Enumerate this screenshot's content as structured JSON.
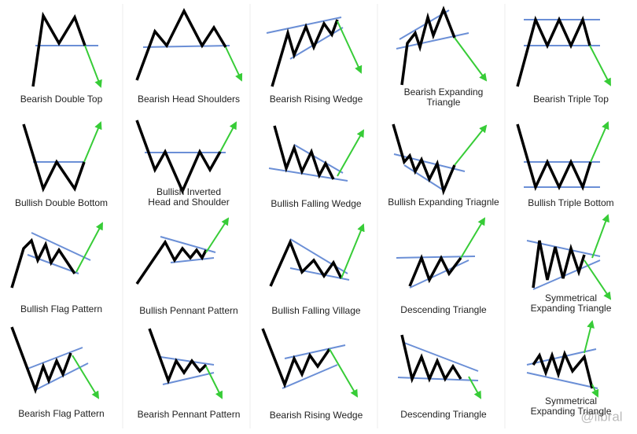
{
  "patterns": [
    {
      "lines": [
        "Bearish Double Top"
      ]
    },
    {
      "lines": [
        "Bearish Head Shoulders"
      ]
    },
    {
      "lines": [
        "Bearish Rising Wedge"
      ]
    },
    {
      "lines": [
        "Bearish Expanding",
        "Triangle"
      ]
    },
    {
      "lines": [
        "Bearish Triple Top"
      ]
    },
    {
      "lines": [
        "Bullish Double Bottom"
      ]
    },
    {
      "lines": [
        "Bullish Inverted",
        "Head and Shoulder"
      ]
    },
    {
      "lines": [
        "Bullish Falling Wedge"
      ]
    },
    {
      "lines": [
        "Bullish Expanding Triagnle"
      ]
    },
    {
      "lines": [
        "Bullish Triple Bottom"
      ]
    },
    {
      "lines": [
        "Bullish Flag Pattern"
      ]
    },
    {
      "lines": [
        "Bullish Pennant Pattern"
      ]
    },
    {
      "lines": [
        "Bullish Falling Village"
      ]
    },
    {
      "lines": [
        "Descending Triangle"
      ]
    },
    {
      "lines": [
        "Symmetrical",
        "Expanding Triangle"
      ]
    },
    {
      "lines": [
        "Bearish Flag Pattern"
      ]
    },
    {
      "lines": [
        "Bearish Pennant Pattern"
      ]
    },
    {
      "lines": [
        "Bearish Rising Wedge"
      ]
    },
    {
      "lines": [
        "Descending Triangle"
      ]
    },
    {
      "lines": [
        "Symmetrical",
        "Expanding Triangle"
      ]
    }
  ],
  "watermark": "@libral"
}
